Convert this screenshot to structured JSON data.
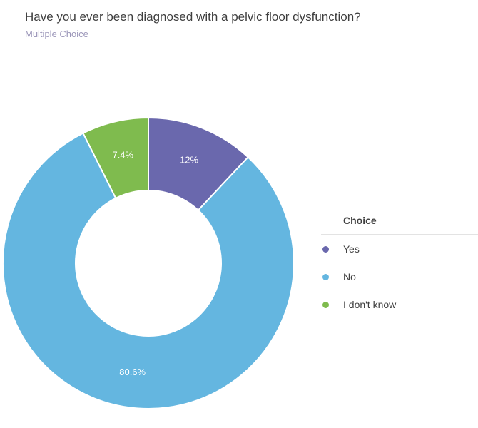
{
  "question": {
    "title": "Have you ever been diagnosed with a pelvic floor dysfunction?",
    "type_label": "Multiple Choice"
  },
  "legend": {
    "title": "Choice"
  },
  "chart_data": {
    "type": "pie",
    "donut": true,
    "categories": [
      "Yes",
      "No",
      "I don't know"
    ],
    "values": [
      12,
      80.6,
      7.4
    ],
    "data_labels": [
      "12%",
      "80.6%",
      "7.4%"
    ],
    "colors": [
      "#6a68ad",
      "#64b6e0",
      "#7fbb4e"
    ],
    "label_color": "#ffffff",
    "legend_position": "right"
  }
}
